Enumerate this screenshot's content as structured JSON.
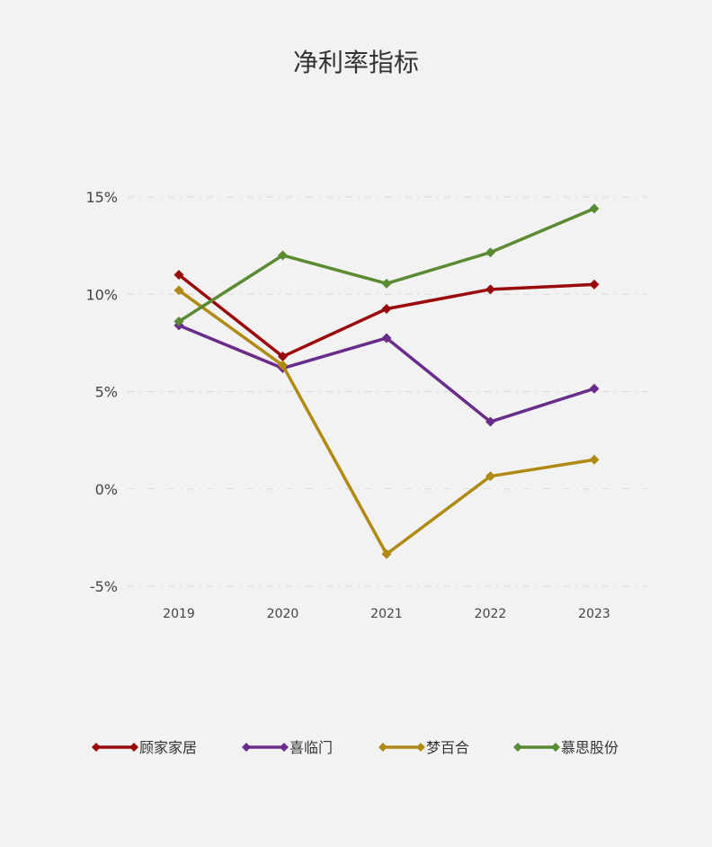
{
  "chart_data": {
    "type": "line",
    "title": "净利率指标",
    "xlabel": "",
    "ylabel": "",
    "x": [
      "2019",
      "2020",
      "2021",
      "2022",
      "2023"
    ],
    "y_ticks": [
      "15%",
      "10%",
      "5%",
      "0%",
      "-5%"
    ],
    "ylim": [
      -5,
      15
    ],
    "grid": true,
    "legend_position": "bottom",
    "series": [
      {
        "name": "顾家家居",
        "color": "#9b0a0a",
        "values": [
          11.0,
          6.8,
          9.25,
          10.25,
          10.5
        ]
      },
      {
        "name": "喜临门",
        "color": "#6a2c8a",
        "values": [
          8.4,
          6.2,
          7.75,
          3.45,
          5.15
        ]
      },
      {
        "name": "梦百合",
        "color": "#b08a14",
        "values": [
          10.2,
          6.35,
          -3.35,
          0.65,
          1.5
        ]
      },
      {
        "name": "慕思股份",
        "color": "#5a8a32",
        "values": [
          8.6,
          12.0,
          10.55,
          12.15,
          14.4
        ]
      }
    ]
  }
}
